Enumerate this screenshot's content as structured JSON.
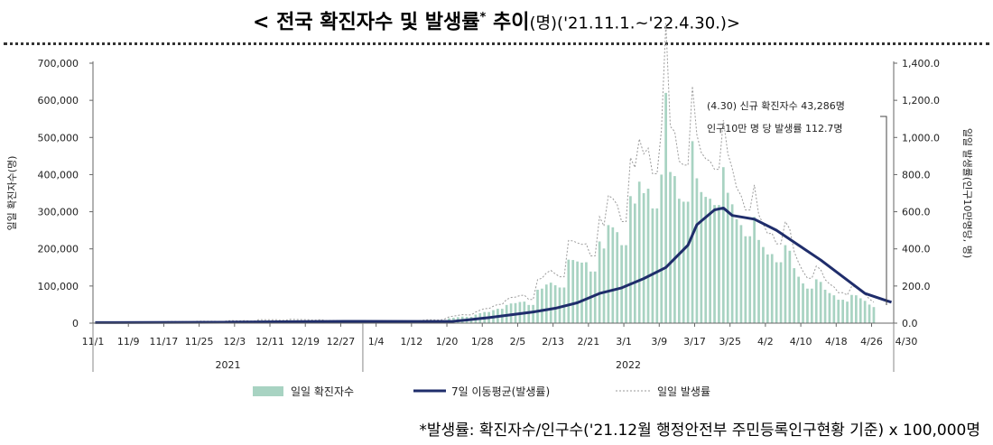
{
  "title": {
    "main": "< 전국 확진자수 및 발생률",
    "star": "*",
    "main2": " 추이",
    "rest": "(명)('21.11.1.~'22.4.30.)>"
  },
  "footnote": "*발생률: 확진자수/인구수('21.12월 행정안전부 주민등록인구현황 기준) x 100,000명",
  "chart_data": {
    "type": "bar",
    "x_tick_labels": [
      "11/1",
      "11/9",
      "11/17",
      "11/25",
      "12/3",
      "12/11",
      "12/19",
      "12/27",
      "1/4",
      "1/12",
      "1/20",
      "1/28",
      "2/5",
      "2/13",
      "2/21",
      "3/1",
      "3/9",
      "3/17",
      "3/25",
      "4/2",
      "4/10",
      "4/18",
      "4/26",
      "4/30"
    ],
    "year_labels": [
      "2021",
      "2022"
    ],
    "ylabel_left": "일일 확진자수(명)",
    "ylabel_right": "일일 발생률(인구10만명당, 명)",
    "y_left_ticks": [
      "0",
      "100,000",
      "200,000",
      "300,000",
      "400,000",
      "500,000",
      "600,000",
      "700,000"
    ],
    "y_right_ticks": [
      "0.0",
      "200.0",
      "400.0",
      "600.0",
      "800.0",
      "1,000.0",
      "1,200.0",
      "1,400.0"
    ],
    "ylim_left": [
      0,
      700000
    ],
    "ylim_right": [
      0,
      1400
    ],
    "grid": false,
    "legend_position": "bottom",
    "colors": {
      "bars": "#a8d3c2",
      "moving_avg": "#1f2d6b",
      "daily_rate": "#9a9a9a"
    },
    "series": [
      {
        "name": "일일 확진자수",
        "type": "bar",
        "axis": "left",
        "values": [
          1684,
          1589,
          2667,
          2480,
          2343,
          2224,
          2426,
          1758,
          1758,
          2408,
          2423,
          2520,
          2368,
          2419,
          2004,
          2004,
          3186,
          3288,
          3291,
          3034,
          3119,
          2827,
          2827,
          3938,
          4115,
          4067,
          3897,
          3905,
          3127,
          3127,
          5120,
          5265,
          4944,
          4954,
          5351,
          4318,
          4318,
          7174,
          7103,
          7022,
          6976,
          7003,
          5816,
          5816,
          7850,
          7622,
          7435,
          7313,
          7314,
          6233,
          6233,
          7455,
          5202,
          5410,
          5407,
          5420,
          4207,
          4207,
          5036,
          3865,
          4415,
          4875,
          4539,
          3833,
          3833,
          4445,
          4126,
          4220,
          4385,
          4542,
          3857,
          3857,
          4071,
          4388,
          5805,
          7012,
          7009,
          6601,
          6601,
          8571,
          13012,
          14518,
          16096,
          17542,
          17079,
          17079,
          22907,
          26724,
          30000,
          30000,
          35000,
          38685,
          38685,
          49000,
          53000,
          54000,
          57000,
          58000,
          49000,
          49000,
          90000,
          93000,
          104000,
          109000,
          102000,
          96000,
          96000,
          171000,
          170000,
          166000,
          163000,
          164000,
          139000,
          139000,
          220000,
          201000,
          264000,
          258000,
          245000,
          210000,
          210000,
          342000,
          322000,
          381000,
          350000,
          362000,
          309000,
          309000,
          400000,
          620000,
          407000,
          396000,
          335000,
          327000,
          327000,
          490000,
          390000,
          353000,
          340000,
          335000,
          318000,
          318000,
          420000,
          351000,
          320000,
          280000,
          264000,
          234000,
          234000,
          286000,
          224000,
          205000,
          185000,
          186000,
          164000,
          164000,
          210000,
          195000,
          148000,
          125000,
          107000,
          93000,
          93000,
          118000,
          111000,
          90000,
          81000,
          75000,
          63000,
          63000,
          58000,
          76000,
          75000,
          67000,
          60000,
          50000,
          43286
        ]
      },
      {
        "name": "7일 이동평균(발생률)",
        "type": "line",
        "axis": "right",
        "x": [
          1,
          30,
          60,
          75,
          82,
          85,
          88,
          90,
          95,
          100,
          105,
          110,
          115,
          120,
          125,
          130,
          135,
          137,
          140,
          141,
          143,
          145,
          150,
          155,
          160,
          165,
          170,
          175,
          180,
          181
        ],
        "values": [
          3,
          5,
          10,
          9,
          10,
          17,
          25,
          30,
          45,
          60,
          80,
          110,
          160,
          190,
          240,
          300,
          420,
          530,
          590,
          610,
          620,
          580,
          560,
          500,
          420,
          340,
          250,
          160,
          120,
          112.7
        ]
      },
      {
        "name": "일일 발생률",
        "type": "line",
        "axis": "right"
      }
    ],
    "annotations": [
      "(4.30) 신규 확진자수 43,286명",
      "인구10만 명 당 발생률 112.7명"
    ]
  }
}
